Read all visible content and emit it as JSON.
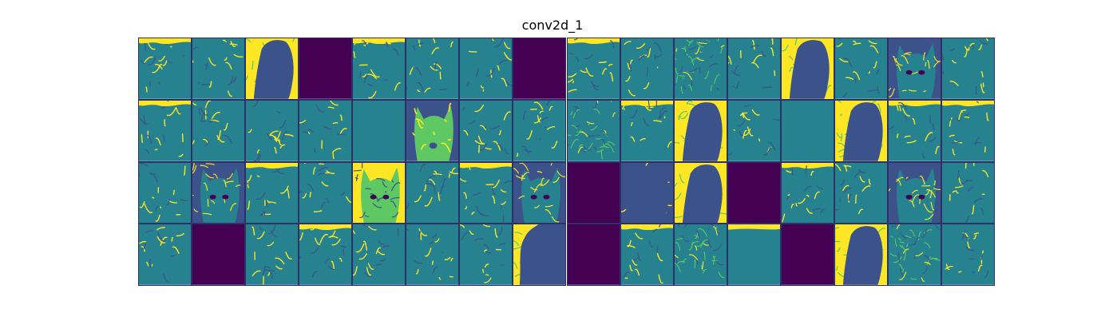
{
  "title": "conv2d_1",
  "chart_data": {
    "type": "heatmap",
    "title": "conv2d_1",
    "layout": {
      "rows": 4,
      "cols": 16
    },
    "colormap": "viridis",
    "colors": {
      "background": "#26828e",
      "dark": "#440154",
      "bright": "#fde725",
      "mid": "#3b528b",
      "green": "#5ec962"
    },
    "maps": [
      "edges-top",
      "edges",
      "silhouette-bright",
      "dead",
      "edges-top",
      "edges",
      "edges",
      "dead",
      "edges-top",
      "edges",
      "texture",
      "edges",
      "silhouette-bright",
      "edges",
      "cat-face",
      "edges",
      "edges-top",
      "edges",
      "edges",
      "edges",
      "flat",
      "head-dark",
      "edges",
      "edges",
      "texture",
      "edges-top",
      "silhouette-bright",
      "edges",
      "flat",
      "silhouette-bright",
      "edges-top",
      "edges-top",
      "edges",
      "cat-face",
      "edges-top",
      "edges",
      "cat-face-bright",
      "edges",
      "edges-top",
      "cat-face",
      "dead",
      "silhouette-dark",
      "silhouette-bright",
      "dead",
      "edges-top",
      "edges",
      "cat-face",
      "edges",
      "edges",
      "dead",
      "edges",
      "edges-top",
      "edges",
      "edges",
      "edges",
      "silhouette-bright",
      "dead",
      "edges-top",
      "texture",
      "flat-top",
      "dead",
      "silhouette-bright",
      "texture",
      "edges"
    ]
  }
}
